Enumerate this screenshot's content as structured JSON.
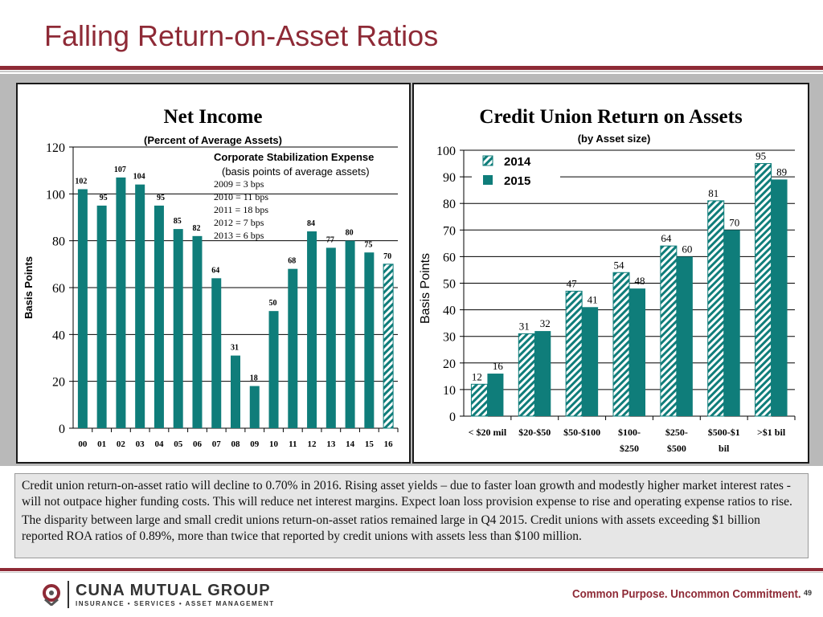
{
  "slide": {
    "title": "Falling Return-on-Asset Ratios",
    "body_paragraphs": [
      "Credit union return-on-asset ratio will decline to 0.70% in 2016.  Rising asset yields – due to faster loan growth and modestly higher market interest rates - will not outpace higher funding costs. This will reduce net interest margins. Expect loan loss provision expense to rise and operating expense ratios to rise.",
      "The disparity between large and small credit unions return-on-asset ratios remained large in Q4  2015. Credit unions with assets exceeding $1 billion reported ROA ratios of 0.89%, more than twice that reported by credit unions with assets less than $100 million."
    ],
    "footer": {
      "logo_name": "CUNA MUTUAL GROUP",
      "logo_tagline": "INSURANCE • SERVICES • ASSET MANAGEMENT",
      "tagline": "Common Purpose. Uncommon Commitment.",
      "page_number": "49"
    }
  },
  "colors": {
    "brand": "#8e2a36",
    "bar_solid": "#0f7d7a",
    "bar_hatch": "#0f7d7a"
  },
  "chart_data": [
    {
      "type": "bar",
      "title": "Net Income",
      "subtitle": "(Percent of Average Assets)",
      "xlabel": "",
      "ylabel": "Basis Points",
      "ylim": [
        0,
        120
      ],
      "yticks": [
        0,
        20,
        40,
        60,
        80,
        100,
        120
      ],
      "grid": true,
      "categories": [
        "00",
        "01",
        "02",
        "03",
        "04",
        "05",
        "06",
        "07",
        "08",
        "09",
        "10",
        "11",
        "12",
        "13",
        "14",
        "15",
        "16"
      ],
      "values": [
        102,
        95,
        107,
        104,
        95,
        85,
        82,
        64,
        31,
        18,
        50,
        68,
        84,
        77,
        80,
        75,
        70
      ],
      "forecast_categories": [
        "16"
      ],
      "annotation": {
        "heading": "Corporate Stabilization Expense",
        "subheading": "(basis points of average assets)",
        "lines": [
          "2009 = 3 bps",
          "2010 = 11 bps",
          "2011 = 18 bps",
          "2012 = 7 bps",
          "2013 = 6 bps"
        ]
      }
    },
    {
      "type": "bar",
      "title": "Credit Union Return on Assets",
      "subtitle": "(by Asset size)",
      "xlabel": "",
      "ylabel": "Basis Points",
      "ylim": [
        0,
        100
      ],
      "yticks": [
        0,
        10,
        20,
        30,
        40,
        50,
        60,
        70,
        80,
        90,
        100
      ],
      "grid": true,
      "legend_position": "top-left",
      "categories": [
        "< $20 mil",
        "$20-$50",
        "$50-$100",
        "$100-\n$250",
        "$250-\n$500",
        "$500-$1\nbil",
        ">$1 bil"
      ],
      "series": [
        {
          "name": "2014",
          "style": "hatched",
          "values": [
            12,
            31,
            47,
            54,
            64,
            81,
            95
          ]
        },
        {
          "name": "2015",
          "style": "solid",
          "values": [
            16,
            32,
            41,
            48,
            60,
            70,
            89
          ]
        }
      ]
    }
  ]
}
